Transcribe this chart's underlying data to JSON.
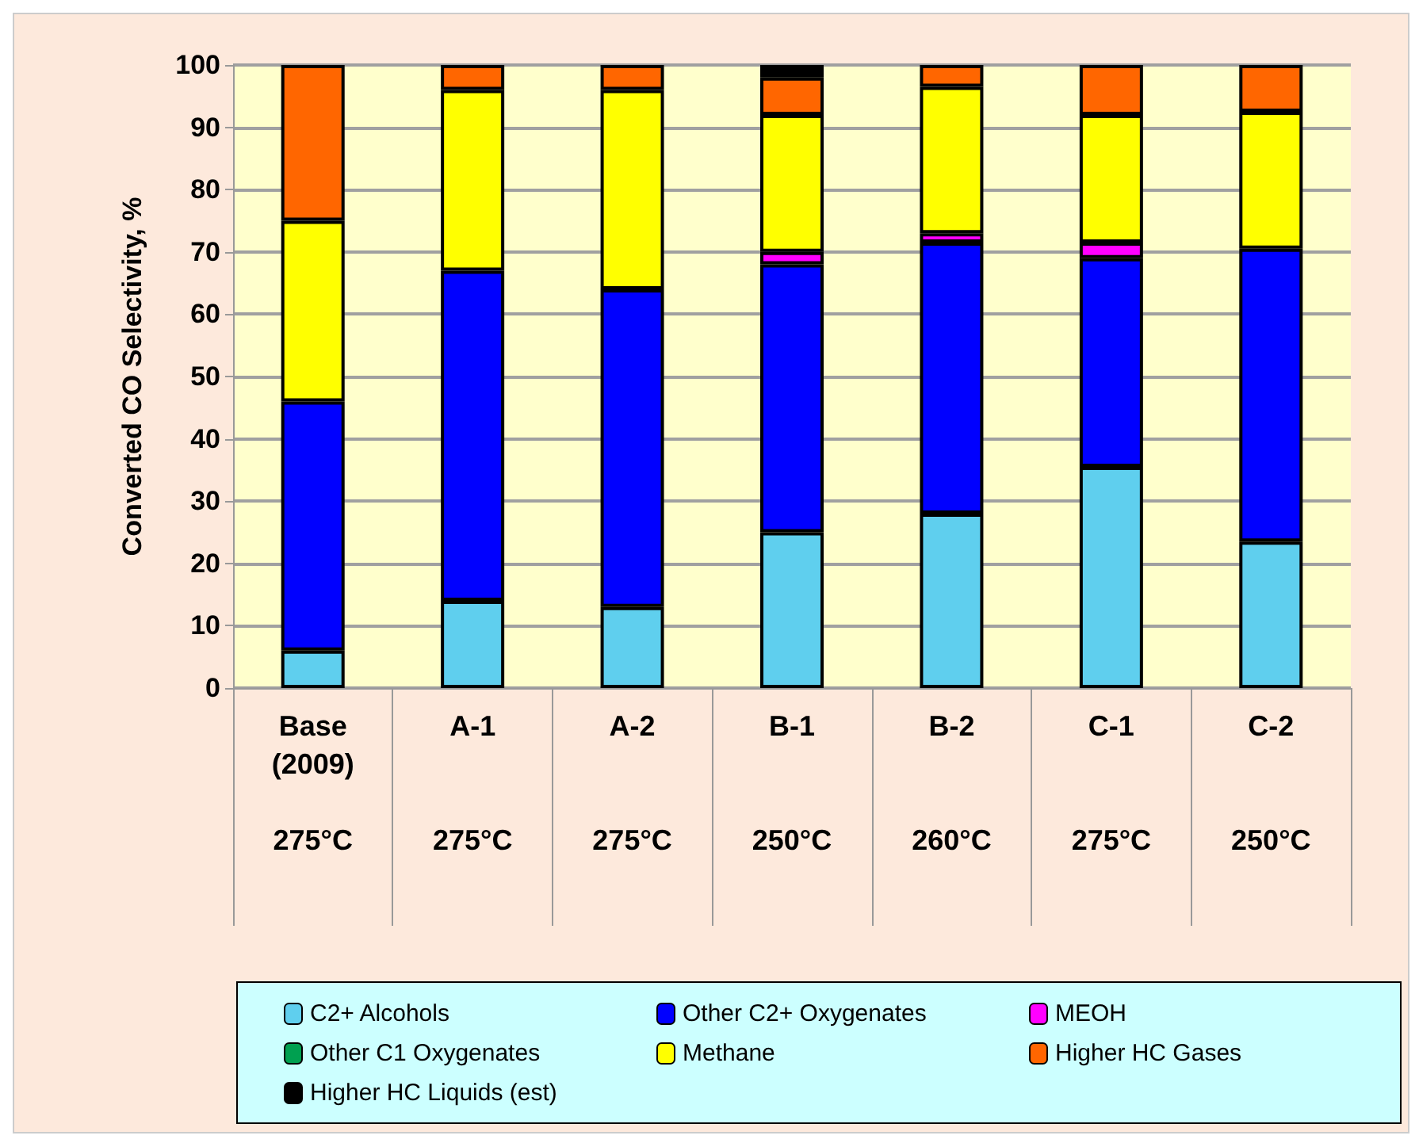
{
  "chart_data": {
    "type": "bar",
    "stacked": true,
    "ylabel": "Converted CO Selectivity, %",
    "categories": [
      "Base\n(2009)\n275°C",
      "A-1\n275°C",
      "A-2\n275°C",
      "B-1\n250°C",
      "B-2\n260°C",
      "C-1\n275°C",
      "C-2\n250°C"
    ],
    "series": [
      {
        "name": "C2+ Alcohols",
        "color": "#5fcfee",
        "values": [
          6,
          14,
          13,
          25,
          28,
          35.5,
          23.5
        ]
      },
      {
        "name": "Other C2+ Oxygenates",
        "color": "#0000ff",
        "values": [
          40,
          53,
          51,
          43,
          43.5,
          33.5,
          47
        ]
      },
      {
        "name": "MEOH",
        "color": "#ff00ff",
        "values": [
          0,
          0,
          0,
          2,
          1.5,
          2.5,
          0
        ]
      },
      {
        "name": "Other C1 Oxygenates",
        "color": "#00a050",
        "values": [
          0,
          0,
          0,
          0,
          0,
          0,
          0
        ]
      },
      {
        "name": "Methane",
        "color": "#ffff00",
        "values": [
          29,
          29,
          32,
          22,
          23.5,
          20.5,
          22
        ]
      },
      {
        "name": "Higher HC Gases",
        "color": "#ff6600",
        "values": [
          25,
          4,
          4,
          6,
          3.5,
          8,
          7.5
        ]
      },
      {
        "name": "Higher HC Liquids (est)",
        "color": "#000000",
        "values": [
          0,
          0,
          0,
          2,
          0,
          0,
          0
        ]
      }
    ],
    "ylim": [
      0,
      100
    ],
    "yticks": [
      0,
      10,
      20,
      30,
      40,
      50,
      60,
      70,
      80,
      90,
      100
    ],
    "grid": "y",
    "legend": "bottom"
  }
}
